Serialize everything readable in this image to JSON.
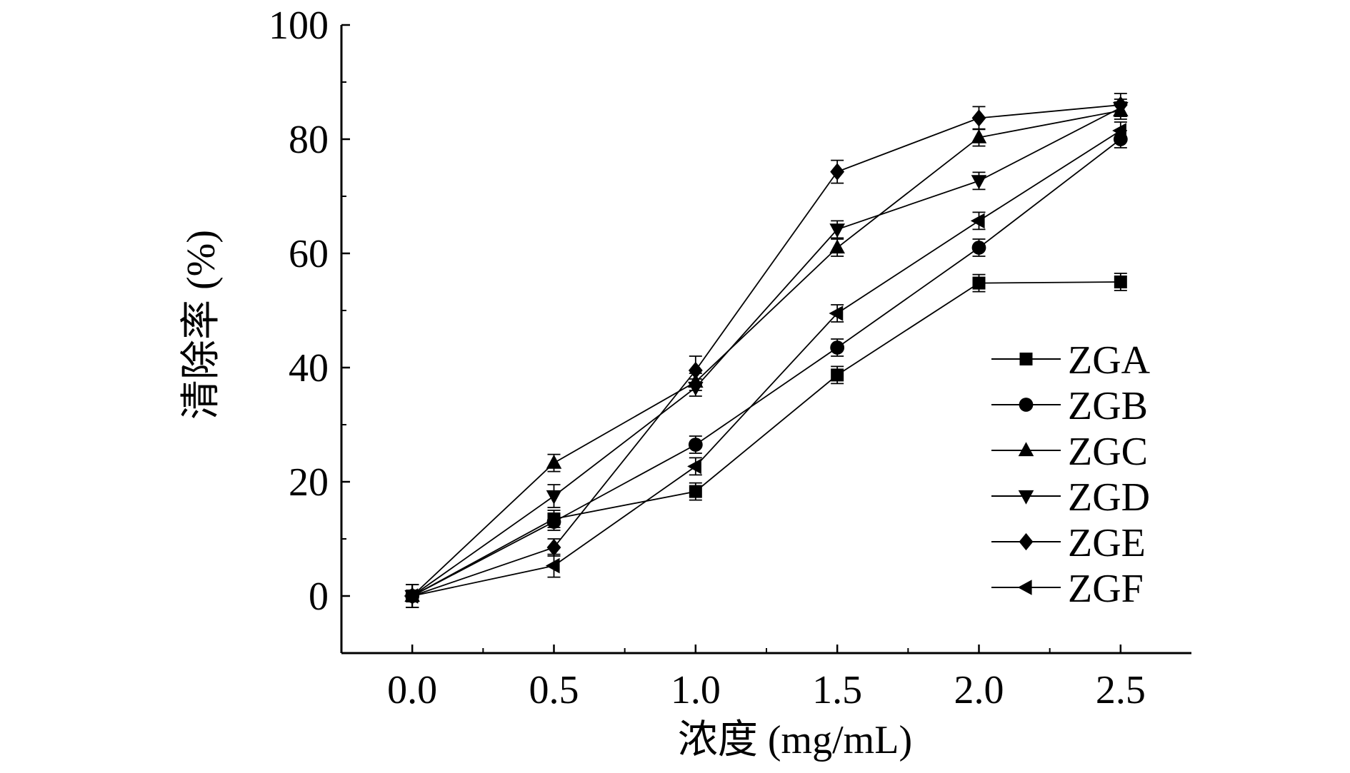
{
  "chart_data": {
    "type": "line",
    "xlabel": "浓度 (mg/mL)",
    "ylabel": "清除率 (%)",
    "x": [
      0.0,
      0.5,
      1.0,
      1.5,
      2.0,
      2.5
    ],
    "x_ticks": [
      "0.0",
      "0.5",
      "1.0",
      "1.5",
      "2.0",
      "2.5"
    ],
    "xlim": [
      -0.25,
      2.75
    ],
    "y_ticks": [
      "0",
      "20",
      "40",
      "60",
      "80",
      "100"
    ],
    "ylim": [
      -10,
      100
    ],
    "grid": false,
    "legend_position": "right",
    "error_bars": true,
    "series": [
      {
        "name": "ZGA",
        "marker": "square",
        "values": [
          0,
          13.5,
          18.3,
          38.7,
          54.8,
          55.0
        ],
        "errors": [
          2,
          1.5,
          1.5,
          1.5,
          1.5,
          1.5
        ]
      },
      {
        "name": "ZGB",
        "marker": "circle",
        "values": [
          0,
          13.0,
          26.5,
          43.5,
          61.0,
          80.0
        ],
        "errors": [
          2,
          1.5,
          1.5,
          1.5,
          1.5,
          1.5
        ]
      },
      {
        "name": "ZGC",
        "marker": "triangle-up",
        "values": [
          0,
          23.3,
          37.5,
          61.0,
          80.3,
          85.0
        ],
        "errors": [
          2,
          1.5,
          1.5,
          1.5,
          1.5,
          1.5
        ]
      },
      {
        "name": "ZGD",
        "marker": "triangle-down",
        "values": [
          0,
          17.5,
          36.5,
          64.2,
          72.7,
          85.5
        ],
        "errors": [
          2,
          2,
          1.5,
          1.5,
          1.5,
          1.5
        ]
      },
      {
        "name": "ZGE",
        "marker": "diamond",
        "values": [
          0,
          8.5,
          39.5,
          74.3,
          83.7,
          86.0
        ],
        "errors": [
          2,
          1.5,
          2.5,
          2,
          2,
          2
        ]
      },
      {
        "name": "ZGF",
        "marker": "triangle-left",
        "values": [
          0,
          5.3,
          22.7,
          49.5,
          65.7,
          81.5
        ],
        "errors": [
          2,
          2,
          1.5,
          1.5,
          1.5,
          1.5
        ]
      }
    ]
  }
}
